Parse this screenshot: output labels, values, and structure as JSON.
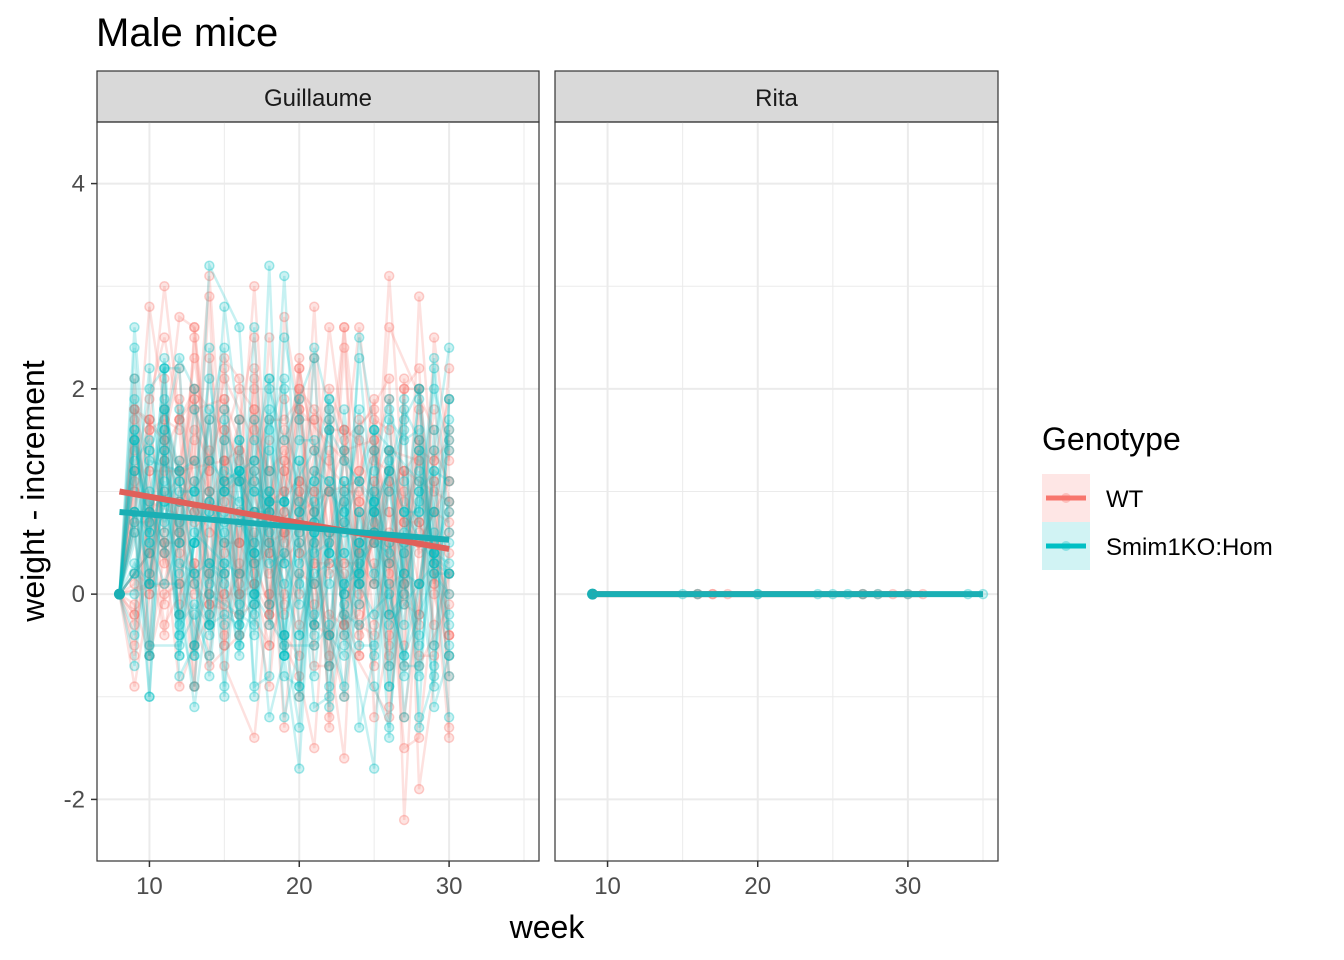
{
  "chart_data": {
    "type": "line",
    "title": "Male mice",
    "xlabel": "week",
    "ylabel": "weight - increment",
    "xlim": [
      6.5,
      36
    ],
    "ylim": [
      -2.6,
      4.6
    ],
    "x_ticks": [
      10,
      20,
      30
    ],
    "y_ticks": [
      -2,
      0,
      2,
      4
    ],
    "grid": true,
    "legend": {
      "title": "Genotype",
      "placement": "right",
      "entries": [
        {
          "label": "WT",
          "color": "#F8766D"
        },
        {
          "label": "Smim1KO:Hom",
          "color": "#00BFC4"
        }
      ]
    },
    "trend_colors": {
      "WT": "#E0605A",
      "Smim1KO:Hom": "#1AAFB4"
    },
    "panels": [
      {
        "name": "Guillaume",
        "x_range": [
          8,
          30
        ],
        "trends": [
          {
            "series": "WT",
            "x": [
              8,
              30
            ],
            "y": [
              1.0,
              0.44
            ]
          },
          {
            "series": "Smim1KO:Hom",
            "x": [
              8,
              30
            ],
            "y": [
              0.8,
              0.53
            ]
          }
        ],
        "series": [
          {
            "name": "WT",
            "color": "#F8766D",
            "count": 30
          },
          {
            "name": "Smim1KO:Hom",
            "color": "#00BFC4",
            "count": 26
          }
        ]
      },
      {
        "name": "Rita",
        "x_range": [
          9,
          35
        ],
        "trends": [
          {
            "series": "WT",
            "x": [
              9,
              31
            ],
            "y": [
              0,
              0
            ]
          },
          {
            "series": "Smim1KO:Hom",
            "x": [
              9,
              35
            ],
            "y": [
              0,
              0
            ]
          }
        ],
        "series": [
          {
            "name": "WT",
            "color": "#F8766D",
            "lines": [
              {
                "x": [
                  9,
                  16,
                  17,
                  18
                ],
                "y": [
                  0,
                  0,
                  0,
                  0
                ]
              },
              {
                "x": [
                  9,
                  16,
                  27,
                  28
                ],
                "y": [
                  0,
                  0,
                  0,
                  0
                ]
              },
              {
                "x": [
                  9,
                  17,
                  27,
                  29,
                  30,
                  31
                ],
                "y": [
                  0,
                  0,
                  0,
                  0,
                  0,
                  0
                ]
              }
            ]
          },
          {
            "name": "Smim1KO:Hom",
            "color": "#00BFC4",
            "lines": [
              {
                "x": [
                  9,
                  15,
                  20,
                  24,
                  25
                ],
                "y": [
                  0,
                  0,
                  0,
                  0,
                  0
                ]
              },
              {
                "x": [
                  9,
                  20,
                  26,
                  28,
                  34,
                  35
                ],
                "y": [
                  0,
                  0,
                  0,
                  0,
                  0,
                  0
                ]
              },
              {
                "x": [
                  9,
                  16,
                  27,
                  30
                ],
                "y": [
                  0,
                  0,
                  0,
                  0
                ]
              }
            ]
          }
        ]
      }
    ]
  }
}
